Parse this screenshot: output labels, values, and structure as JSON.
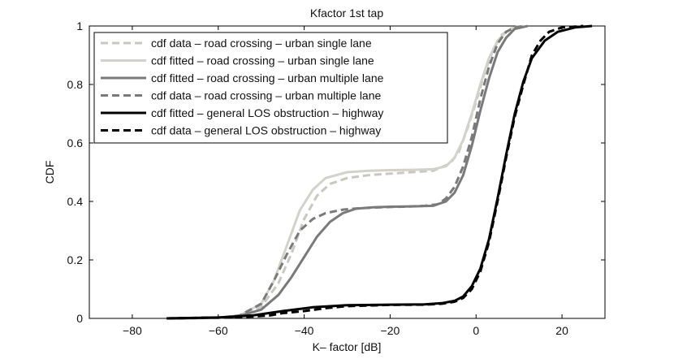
{
  "chart_data": {
    "type": "line",
    "title": "Kfactor 1st tap",
    "xlabel": "K– factor [dB]",
    "ylabel": "CDF",
    "xlim": [
      -90,
      30
    ],
    "ylim": [
      0,
      1
    ],
    "xticks": [
      -80,
      -60,
      -40,
      -20,
      0,
      20
    ],
    "yticks": [
      0,
      0.2,
      0.4,
      0.6,
      0.8,
      1
    ],
    "xtick_labels": [
      "−80",
      "−60",
      "−40",
      "−20",
      "0",
      "20"
    ],
    "ytick_labels": [
      "0",
      "0.2",
      "0.4",
      "0.6",
      "0.8",
      "1"
    ],
    "grid": false,
    "legend_position": "top-left",
    "series": [
      {
        "name": "cdf data – road crossing – urban single lane",
        "color": "#c8c8c0",
        "dash": "dashed",
        "points": [
          [
            -72,
            0
          ],
          [
            -60,
            0.002
          ],
          [
            -55,
            0.01
          ],
          [
            -50,
            0.04
          ],
          [
            -46,
            0.12
          ],
          [
            -43,
            0.22
          ],
          [
            -40,
            0.34
          ],
          [
            -37,
            0.42
          ],
          [
            -34,
            0.46
          ],
          [
            -30,
            0.48
          ],
          [
            -25,
            0.49
          ],
          [
            -20,
            0.495
          ],
          [
            -15,
            0.5
          ],
          [
            -10,
            0.505
          ],
          [
            -6,
            0.53
          ],
          [
            -4,
            0.57
          ],
          [
            -2,
            0.65
          ],
          [
            0,
            0.74
          ],
          [
            2,
            0.84
          ],
          [
            4,
            0.92
          ],
          [
            6,
            0.97
          ],
          [
            8,
            0.99
          ],
          [
            10,
            1.0
          ]
        ]
      },
      {
        "name": "cdf fitted – road crossing – urban single lane",
        "color": "#d2d2ca",
        "dash": "solid",
        "points": [
          [
            -72,
            0
          ],
          [
            -60,
            0.002
          ],
          [
            -55,
            0.01
          ],
          [
            -50,
            0.05
          ],
          [
            -47,
            0.13
          ],
          [
            -44,
            0.25
          ],
          [
            -41,
            0.37
          ],
          [
            -38,
            0.44
          ],
          [
            -35,
            0.48
          ],
          [
            -30,
            0.5
          ],
          [
            -25,
            0.505
          ],
          [
            -20,
            0.507
          ],
          [
            -15,
            0.508
          ],
          [
            -10,
            0.51
          ],
          [
            -7,
            0.52
          ],
          [
            -5,
            0.55
          ],
          [
            -3,
            0.61
          ],
          [
            -1,
            0.7
          ],
          [
            1,
            0.8
          ],
          [
            3,
            0.89
          ],
          [
            5,
            0.95
          ],
          [
            7,
            0.98
          ],
          [
            9,
            0.995
          ],
          [
            11,
            1.0
          ]
        ]
      },
      {
        "name": "cdf fitted – road crossing – urban multiple lane",
        "color": "#7a7a7a",
        "dash": "solid",
        "points": [
          [
            -72,
            0
          ],
          [
            -60,
            0.002
          ],
          [
            -55,
            0.008
          ],
          [
            -50,
            0.03
          ],
          [
            -46,
            0.08
          ],
          [
            -43,
            0.14
          ],
          [
            -40,
            0.21
          ],
          [
            -37,
            0.28
          ],
          [
            -34,
            0.33
          ],
          [
            -31,
            0.36
          ],
          [
            -28,
            0.375
          ],
          [
            -24,
            0.38
          ],
          [
            -20,
            0.382
          ],
          [
            -15,
            0.383
          ],
          [
            -10,
            0.385
          ],
          [
            -7,
            0.4
          ],
          [
            -5,
            0.43
          ],
          [
            -3,
            0.49
          ],
          [
            -1,
            0.59
          ],
          [
            1,
            0.71
          ],
          [
            3,
            0.82
          ],
          [
            5,
            0.91
          ],
          [
            7,
            0.96
          ],
          [
            9,
            0.99
          ],
          [
            12,
            1.0
          ]
        ]
      },
      {
        "name": "cdf data – road crossing – urban multiple lane",
        "color": "#7a7a7a",
        "dash": "dashed",
        "points": [
          [
            -72,
            0
          ],
          [
            -60,
            0.002
          ],
          [
            -55,
            0.01
          ],
          [
            -50,
            0.05
          ],
          [
            -47,
            0.13
          ],
          [
            -44,
            0.22
          ],
          [
            -41,
            0.3
          ],
          [
            -38,
            0.34
          ],
          [
            -35,
            0.36
          ],
          [
            -31,
            0.372
          ],
          [
            -27,
            0.377
          ],
          [
            -22,
            0.38
          ],
          [
            -17,
            0.382
          ],
          [
            -12,
            0.385
          ],
          [
            -9,
            0.39
          ],
          [
            -7,
            0.41
          ],
          [
            -5,
            0.45
          ],
          [
            -3,
            0.52
          ],
          [
            -1,
            0.62
          ],
          [
            1,
            0.75
          ],
          [
            3,
            0.86
          ],
          [
            5,
            0.94
          ],
          [
            7,
            0.98
          ],
          [
            9,
            0.995
          ],
          [
            11,
            1.0
          ]
        ]
      },
      {
        "name": "cdf fitted – general LOS obstruction – highway",
        "color": "#000000",
        "dash": "solid",
        "points": [
          [
            -72,
            0
          ],
          [
            -60,
            0.003
          ],
          [
            -52,
            0.01
          ],
          [
            -45,
            0.025
          ],
          [
            -38,
            0.038
          ],
          [
            -30,
            0.045
          ],
          [
            -20,
            0.047
          ],
          [
            -12,
            0.048
          ],
          [
            -8,
            0.052
          ],
          [
            -5,
            0.06
          ],
          [
            -3,
            0.075
          ],
          [
            -1,
            0.11
          ],
          [
            1,
            0.17
          ],
          [
            3,
            0.27
          ],
          [
            5,
            0.41
          ],
          [
            7,
            0.56
          ],
          [
            9,
            0.7
          ],
          [
            11,
            0.81
          ],
          [
            13,
            0.89
          ],
          [
            16,
            0.95
          ],
          [
            19,
            0.98
          ],
          [
            23,
            0.995
          ],
          [
            27,
            1.0
          ]
        ]
      },
      {
        "name": "cdf data – general LOS obstruction – highway",
        "color": "#000000",
        "dash": "dashed",
        "points": [
          [
            -72,
            0
          ],
          [
            -60,
            0.003
          ],
          [
            -52,
            0.006
          ],
          [
            -48,
            0.01
          ],
          [
            -45,
            0.018
          ],
          [
            -40,
            0.025
          ],
          [
            -35,
            0.035
          ],
          [
            -30,
            0.042
          ],
          [
            -20,
            0.046
          ],
          [
            -12,
            0.047
          ],
          [
            -8,
            0.05
          ],
          [
            -5,
            0.057
          ],
          [
            -3,
            0.07
          ],
          [
            -1,
            0.1
          ],
          [
            1,
            0.16
          ],
          [
            3,
            0.26
          ],
          [
            5,
            0.4
          ],
          [
            7,
            0.55
          ],
          [
            9,
            0.69
          ],
          [
            11,
            0.8
          ],
          [
            13,
            0.9
          ],
          [
            15,
            0.95
          ],
          [
            17,
            0.98
          ],
          [
            20,
            0.995
          ],
          [
            25,
            1.0
          ]
        ]
      }
    ]
  }
}
